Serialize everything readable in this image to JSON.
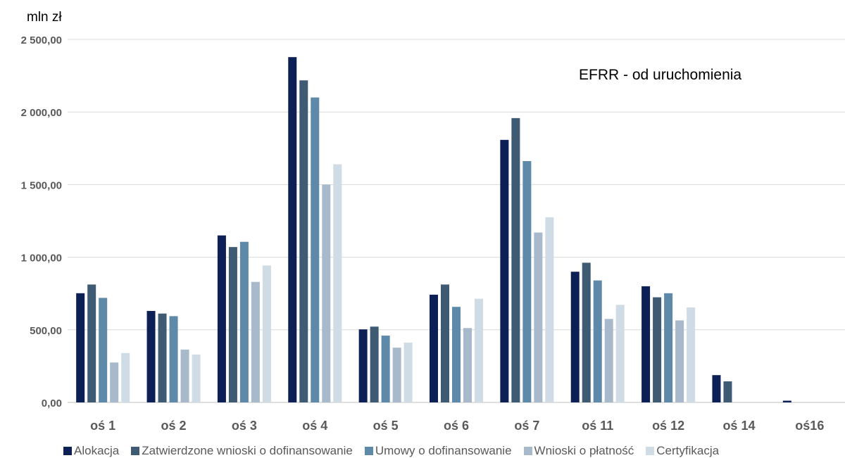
{
  "chart_data": {
    "type": "bar",
    "title": "EFRR - od uruchomienia",
    "ylabel": "mln zł",
    "xlabel": "",
    "ylim": [
      0,
      2500
    ],
    "y_ticks": [
      "0,00",
      "500,00",
      "1 000,00",
      "1 500,00",
      "2 000,00",
      "2 500,00"
    ],
    "y_tick_values": [
      0,
      500,
      1000,
      1500,
      2000,
      2500
    ],
    "grid": true,
    "legend_position": "bottom",
    "categories": [
      "oś 1",
      "oś 2",
      "oś 3",
      "oś 4",
      "oś 5",
      "oś 6",
      "oś 7",
      "oś 11",
      "oś 12",
      "oś 14",
      "oś16"
    ],
    "series": [
      {
        "name": "Alokacja",
        "color": "#0d2056",
        "values": [
          752,
          630,
          1150,
          2378,
          503,
          742,
          1808,
          900,
          800,
          188,
          12
        ]
      },
      {
        "name": "Zatwierdzone wnioski o dofinansowanie",
        "color": "#3f5a73",
        "values": [
          812,
          612,
          1070,
          2218,
          522,
          812,
          1958,
          962,
          724,
          145,
          0
        ]
      },
      {
        "name": "Umowy o dofinansowanie",
        "color": "#5f89a8",
        "values": [
          720,
          594,
          1106,
          2100,
          460,
          658,
          1662,
          840,
          752,
          0,
          0
        ]
      },
      {
        "name": "Wnioski o płatność",
        "color": "#a7b9cb",
        "values": [
          275,
          364,
          830,
          1500,
          377,
          512,
          1170,
          575,
          565,
          0,
          0
        ]
      },
      {
        "name": "Certyfikacja",
        "color": "#cfdbe5",
        "values": [
          340,
          330,
          943,
          1640,
          412,
          714,
          1275,
          672,
          654,
          0,
          0
        ]
      }
    ]
  }
}
